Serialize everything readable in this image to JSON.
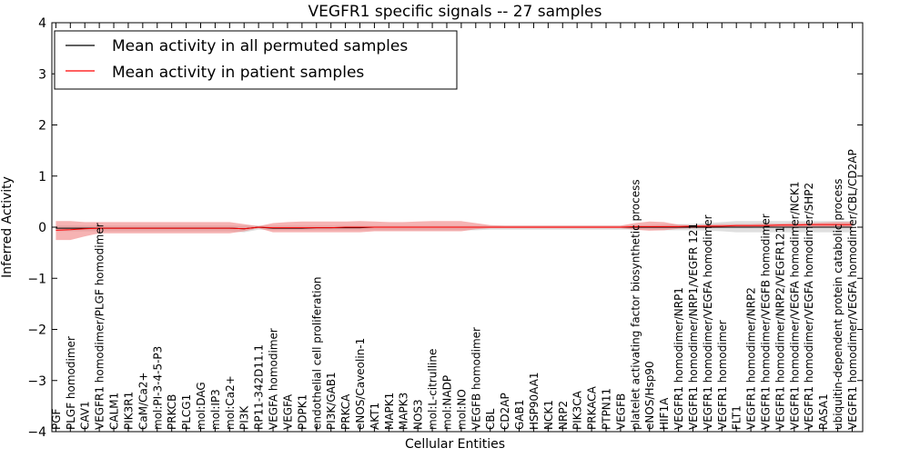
{
  "chart_data": {
    "type": "line",
    "title": "VEGFR1 specific signals -- 27 samples",
    "xlabel": "Cellular Entities",
    "ylabel": "Inferred Activity",
    "ylim": [
      -4,
      4
    ],
    "yticks": [
      -4,
      -3,
      -2,
      -1,
      0,
      1,
      2,
      3,
      4
    ],
    "ytick_labels": [
      "−4",
      "−3",
      "−2",
      "−1",
      "0",
      "1",
      "2",
      "3",
      "4"
    ],
    "legend": {
      "position": "top-left"
    },
    "colors": {
      "permuted_line": "#000000",
      "permuted_band": "#bfbfbf",
      "patient_line": "#ff0000",
      "patient_band": "#f08080"
    },
    "categories": [
      "PGF",
      "PLGF homodimer",
      "CAV1",
      "VEGFR1 homodimer/PLGF homodimer",
      "CALM1",
      "PIK3R1",
      "CaM/Ca2+",
      "mol:PI-3-4-5-P3",
      "PRKCB",
      "PLCG1",
      "mol:DAG",
      "mol:IP3",
      "mol:Ca2+",
      "PI3K",
      "RP11-342D11.1",
      "VEGFA homodimer",
      "VEGFA",
      "PDPK1",
      "endothelial cell proliferation",
      "PI3K/GAB1",
      "PRKCA",
      "eNOS/Caveolin-1",
      "AKT1",
      "MAPK1",
      "MAPK3",
      "NOS3",
      "mol:L-citrulline",
      "mol:NADP",
      "mol:NO",
      "VEGFB homodimer",
      "CBL",
      "CD2AP",
      "GAB1",
      "HSP90AA1",
      "NCK1",
      "NRP2",
      "PIK3CA",
      "PRKACA",
      "PTPN11",
      "VEGFB",
      "platelet activating factor biosynthetic process",
      "eNOS/Hsp90",
      "HIF1A",
      "VEGFR1 homodimer/NRP1",
      "VEGFR1 homodimer/NRP1/VEGFR 121",
      "VEGFR1 homodimer/VEGFA homodimer",
      "VEGFR1 homodimer",
      "FLT1",
      "VEGFR1 homodimer/NRP2",
      "VEGFR1 homodimer/VEGFB homodimer",
      "VEGFR1 homodimer/NRP2/VEGFR121",
      "VEGFR1 homodimer/VEGFA homodimer/NCK1",
      "VEGFR1 homodimer/VEGFA homodimer/SHP2",
      "RASA1",
      "ubiquitin-dependent protein catabolic process",
      "VEGFR1 homodimer/VEGFA homodimer/CBL/CD2AP"
    ],
    "series": [
      {
        "name": "Mean activity in all permuted samples",
        "color": "#000000",
        "values": [
          -0.02,
          -0.02,
          -0.02,
          -0.02,
          -0.02,
          -0.02,
          -0.02,
          -0.02,
          -0.02,
          -0.02,
          -0.02,
          -0.02,
          -0.02,
          -0.03,
          0.0,
          -0.02,
          -0.02,
          -0.02,
          -0.01,
          -0.01,
          -0.01,
          -0.01,
          0.0,
          0.0,
          0.0,
          0.0,
          0.0,
          0.0,
          0.0,
          0.0,
          0.0,
          0.0,
          0.0,
          0.0,
          0.0,
          0.0,
          0.0,
          0.0,
          0.0,
          0.0,
          0.0,
          0.0,
          0.0,
          0.0,
          0.0,
          0.0,
          0.0,
          0.0,
          0.0,
          0.0,
          0.0,
          0.0,
          0.0,
          0.0,
          0.0,
          0.0
        ],
        "lower": [
          -0.08,
          -0.08,
          -0.08,
          -0.08,
          -0.08,
          -0.08,
          -0.08,
          -0.08,
          -0.08,
          -0.08,
          -0.08,
          -0.08,
          -0.08,
          -0.1,
          -0.05,
          -0.06,
          -0.06,
          -0.06,
          -0.06,
          -0.06,
          -0.06,
          -0.06,
          -0.06,
          -0.06,
          -0.06,
          -0.06,
          -0.06,
          -0.06,
          -0.06,
          -0.06,
          -0.05,
          -0.05,
          -0.05,
          -0.05,
          -0.05,
          -0.05,
          -0.05,
          -0.05,
          -0.05,
          -0.05,
          -0.05,
          -0.05,
          -0.06,
          -0.06,
          -0.06,
          -0.07,
          -0.08,
          -0.1,
          -0.1,
          -0.1,
          -0.1,
          -0.1,
          -0.1,
          -0.1,
          -0.1,
          -0.1
        ],
        "upper": [
          0.03,
          0.03,
          0.03,
          0.03,
          0.03,
          0.03,
          0.03,
          0.03,
          0.03,
          0.03,
          0.03,
          0.03,
          0.03,
          0.03,
          0.03,
          0.03,
          0.03,
          0.03,
          0.03,
          0.03,
          0.03,
          0.03,
          0.03,
          0.03,
          0.03,
          0.03,
          0.03,
          0.03,
          0.03,
          0.03,
          0.03,
          0.03,
          0.03,
          0.03,
          0.03,
          0.03,
          0.03,
          0.03,
          0.03,
          0.03,
          0.04,
          0.04,
          0.05,
          0.06,
          0.06,
          0.08,
          0.1,
          0.12,
          0.12,
          0.12,
          0.12,
          0.12,
          0.12,
          0.12,
          0.12,
          0.12
        ]
      },
      {
        "name": "Mean activity in patient samples",
        "color": "#ff0000",
        "values": [
          -0.06,
          -0.05,
          -0.03,
          -0.02,
          -0.02,
          -0.02,
          -0.02,
          -0.02,
          -0.02,
          -0.02,
          -0.02,
          -0.02,
          -0.02,
          -0.03,
          0.0,
          -0.01,
          -0.01,
          -0.01,
          -0.01,
          -0.01,
          0.0,
          0.0,
          0.0,
          0.0,
          0.0,
          0.0,
          0.0,
          0.0,
          0.0,
          0.0,
          0.0,
          0.0,
          0.0,
          0.0,
          0.0,
          0.0,
          0.0,
          0.0,
          0.0,
          0.0,
          0.01,
          0.01,
          0.01,
          0.01,
          0.02,
          0.02,
          0.02,
          0.03,
          0.03,
          0.03,
          0.04,
          0.04,
          0.05,
          0.05,
          0.05,
          0.05
        ],
        "lower": [
          -0.25,
          -0.25,
          -0.18,
          -0.12,
          -0.12,
          -0.12,
          -0.12,
          -0.12,
          -0.12,
          -0.12,
          -0.12,
          -0.12,
          -0.12,
          -0.08,
          -0.02,
          -0.1,
          -0.1,
          -0.1,
          -0.1,
          -0.1,
          -0.1,
          -0.1,
          -0.08,
          -0.08,
          -0.08,
          -0.08,
          -0.08,
          -0.08,
          -0.08,
          -0.04,
          -0.02,
          -0.02,
          -0.02,
          -0.02,
          -0.02,
          -0.02,
          -0.02,
          -0.02,
          -0.02,
          -0.02,
          -0.05,
          -0.07,
          -0.06,
          -0.03,
          -0.02,
          -0.02,
          -0.01,
          -0.01,
          -0.01,
          0.0,
          0.0,
          0.0,
          0.0,
          0.0,
          0.0,
          0.0
        ],
        "upper": [
          0.12,
          0.12,
          0.1,
          0.1,
          0.1,
          0.1,
          0.1,
          0.1,
          0.1,
          0.1,
          0.1,
          0.1,
          0.1,
          0.06,
          0.02,
          0.08,
          0.1,
          0.11,
          0.11,
          0.11,
          0.11,
          0.12,
          0.11,
          0.1,
          0.1,
          0.11,
          0.12,
          0.12,
          0.12,
          0.08,
          0.04,
          0.03,
          0.03,
          0.03,
          0.03,
          0.03,
          0.03,
          0.03,
          0.03,
          0.03,
          0.08,
          0.11,
          0.1,
          0.05,
          0.04,
          0.05,
          0.06,
          0.06,
          0.06,
          0.07,
          0.07,
          0.08,
          0.08,
          0.09,
          0.1,
          0.1
        ]
      }
    ]
  }
}
